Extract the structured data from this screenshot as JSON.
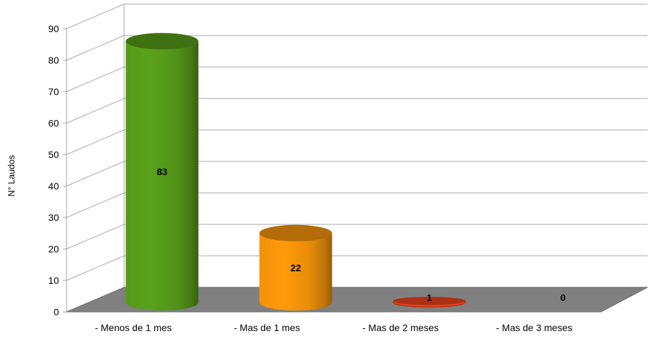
{
  "chart_data": {
    "type": "bar",
    "style": "3d-cylinder",
    "categories": [
      "- Menos de 1 mes",
      "- Mas de 1 mes",
      "- Mas de 2 meses",
      "- Mas de 3 meses"
    ],
    "values": [
      83,
      22,
      1,
      0
    ],
    "data_labels": [
      "83",
      "22",
      "1",
      "0"
    ],
    "colors": [
      "#5aa21b",
      "#ff9a0a",
      "#e8401a",
      "#c00000"
    ],
    "ylabel": "N° Laudos",
    "xlabel": "",
    "ylim": [
      0,
      90
    ],
    "yticks": [
      "0",
      "10",
      "20",
      "30",
      "40",
      "50",
      "60",
      "70",
      "80",
      "90"
    ],
    "grid": true,
    "floor_color": "#808080"
  }
}
